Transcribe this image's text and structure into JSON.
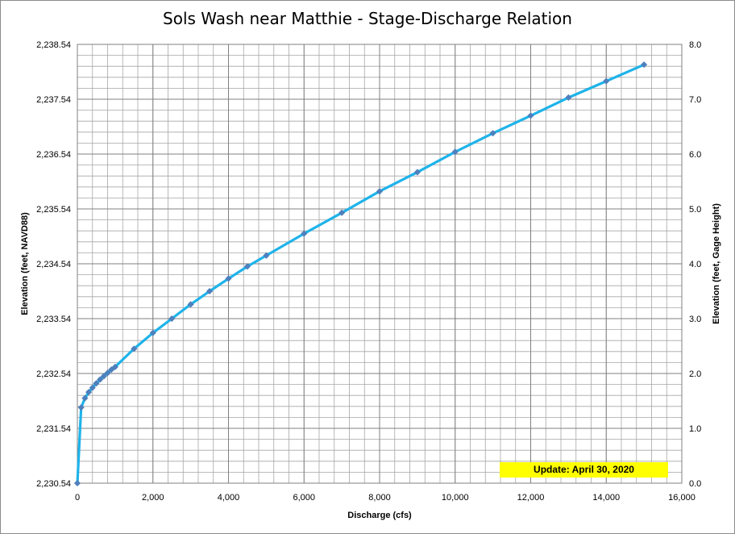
{
  "chart_data": {
    "type": "line",
    "title": "Sols Wash near Matthie - Stage-Discharge Relation",
    "xlabel": "Discharge  (cfs)",
    "ylabel_left": "Elevation  (feet, NAVD88)",
    "ylabel_right": "Elevation  (feet, Gage  Height)",
    "xlim": [
      0,
      16000
    ],
    "ylim_left": [
      2230.54,
      2238.54
    ],
    "ylim_right": [
      0,
      8
    ],
    "x_ticks": [
      "0",
      "2,000",
      "4,000",
      "6,000",
      "8,000",
      "10,000",
      "12,000",
      "14,000",
      "16,000"
    ],
    "y_left_ticks": [
      "2,230.54",
      "2,231.54",
      "2,232.54",
      "2,233.54",
      "2,234.54",
      "2,235.54",
      "2,236.54",
      "2,237.54",
      "2,238.54"
    ],
    "y_right_ticks": [
      "0.0",
      "1.0",
      "2.0",
      "3.0",
      "4.0",
      "5.0",
      "6.0",
      "7.0",
      "8.0"
    ],
    "grid": true,
    "line_color": "#1fb3ea",
    "marker_color": "#4f81bd",
    "series": [
      {
        "x": [
          0,
          100,
          200,
          300,
          400,
          500,
          600,
          700,
          800,
          900,
          1000,
          1500,
          2000,
          2500,
          3000,
          3500,
          4000,
          4500,
          5000,
          6000,
          7000,
          8000,
          9000,
          10000,
          11000,
          12000,
          13000,
          14000,
          15000
        ],
        "y": [
          0.0,
          1.38,
          1.55,
          1.66,
          1.74,
          1.82,
          1.89,
          1.95,
          2.01,
          2.07,
          2.12,
          2.45,
          2.74,
          3.0,
          3.26,
          3.5,
          3.73,
          3.95,
          4.15,
          4.55,
          4.93,
          5.32,
          5.67,
          6.04,
          6.38,
          6.7,
          7.03,
          7.33,
          7.63
        ]
      }
    ]
  },
  "update_note": "Update: April 30, 2020"
}
